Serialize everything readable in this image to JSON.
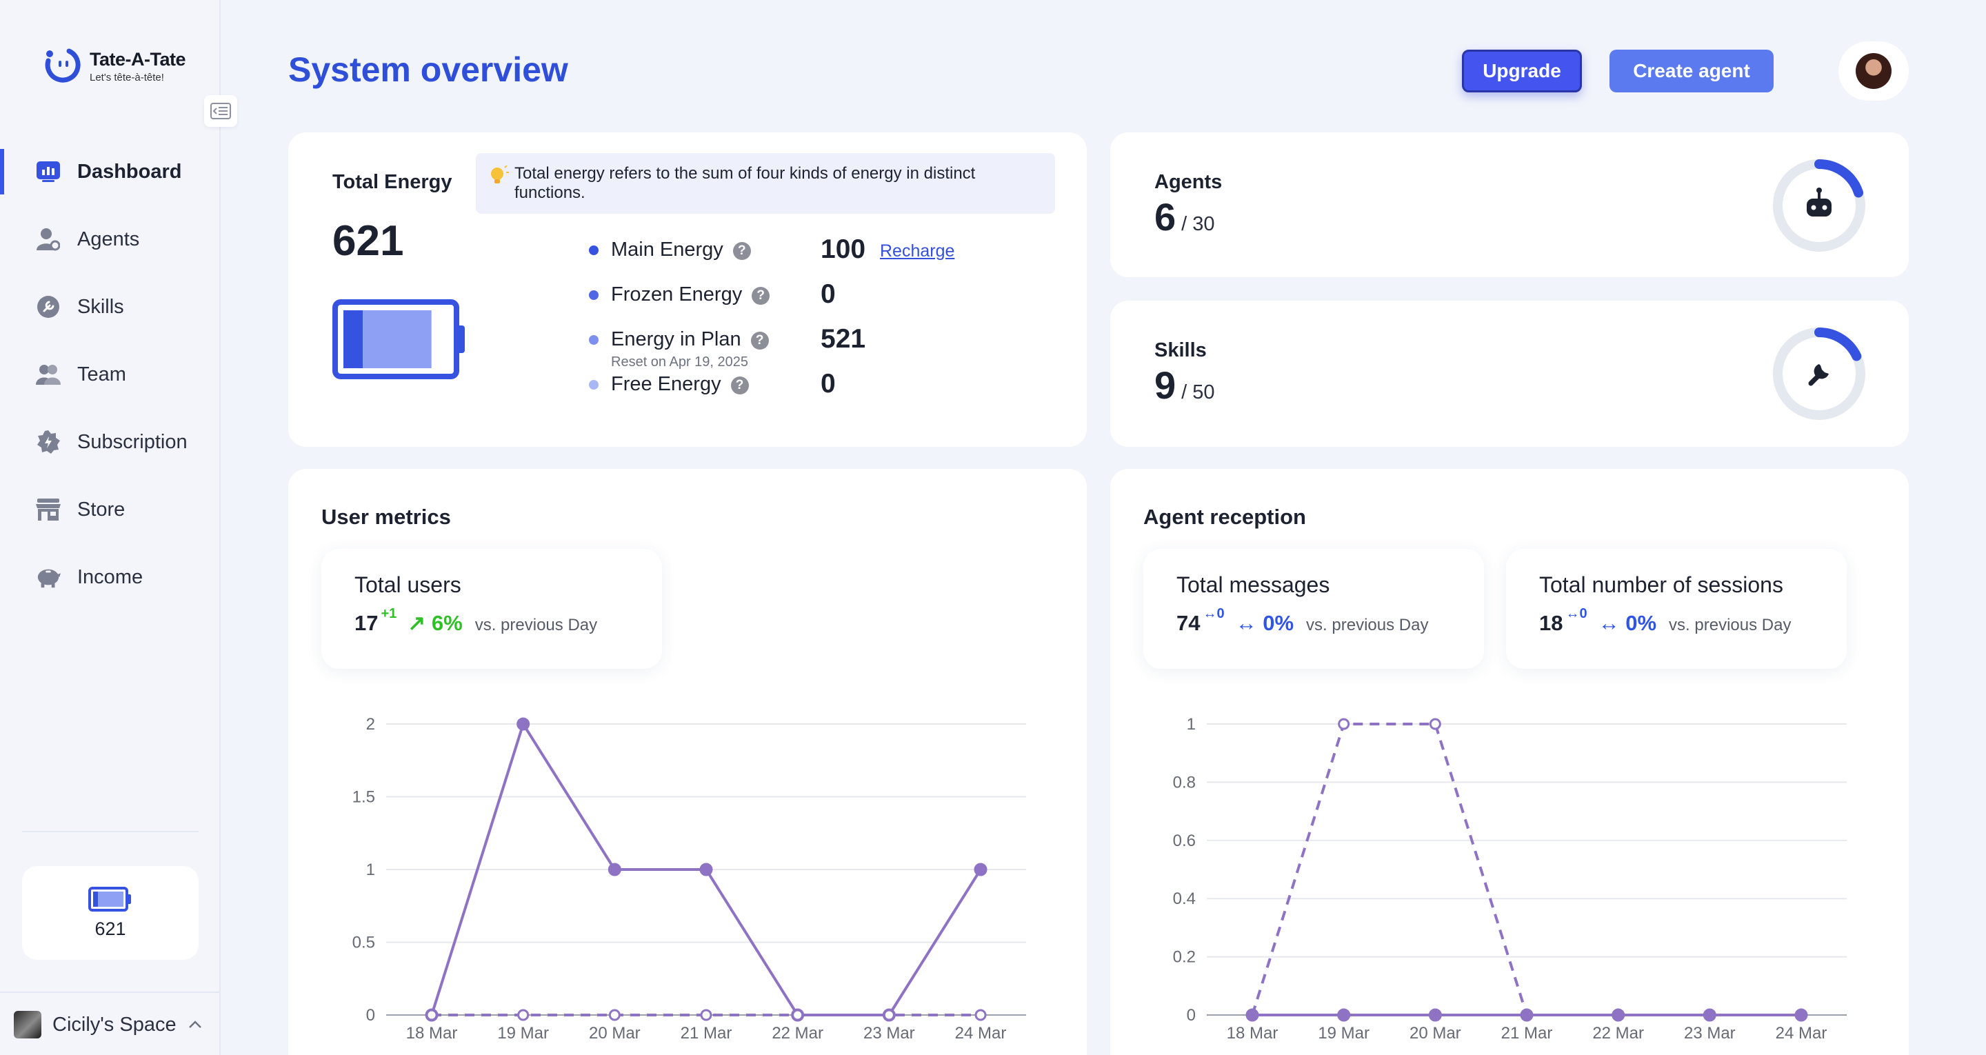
{
  "brand": {
    "name": "Tate-A-Tate",
    "tagline": "Let's tête-à-tête!"
  },
  "sidebar": {
    "items": [
      {
        "label": "Dashboard",
        "icon": "dashboard-icon",
        "active": true
      },
      {
        "label": "Agents",
        "icon": "agents-icon",
        "active": false
      },
      {
        "label": "Skills",
        "icon": "skills-icon",
        "active": false
      },
      {
        "label": "Team",
        "icon": "team-icon",
        "active": false
      },
      {
        "label": "Subscription",
        "icon": "subscription-icon",
        "active": false
      },
      {
        "label": "Store",
        "icon": "store-icon",
        "active": false
      },
      {
        "label": "Income",
        "icon": "income-icon",
        "active": false
      }
    ],
    "energy_value": "621",
    "workspace_name": "Cicily's Space"
  },
  "header": {
    "title": "System overview",
    "upgrade_label": "Upgrade",
    "create_agent_label": "Create agent"
  },
  "energy": {
    "label": "Total Energy",
    "total": "621",
    "battery_fill_fraction": 0.84,
    "tip": "Total energy refers to the sum of four kinds of energy in distinct functions.",
    "rows": [
      {
        "name": "Main Energy",
        "value": "100",
        "color": "#3552e0",
        "action": "Recharge"
      },
      {
        "name": "Frozen Energy",
        "value": "0",
        "color": "#4f67e6"
      },
      {
        "name": "Energy in Plan",
        "value": "521",
        "color": "#7d90ef",
        "note": "Reset on Apr 19, 2025"
      },
      {
        "name": "Free Energy",
        "value": "0",
        "color": "#a9b7f5"
      }
    ]
  },
  "agents": {
    "label": "Agents",
    "value": "6",
    "total": "/ 30",
    "fraction": 0.2
  },
  "skills": {
    "label": "Skills",
    "value": "9",
    "total": "/ 50",
    "fraction": 0.18
  },
  "user_metrics": {
    "title": "User metrics",
    "total_users": {
      "label": "Total users",
      "value": "17",
      "delta": "+1",
      "pct": "6%",
      "compare": "vs. previous Day"
    }
  },
  "agent_reception": {
    "title": "Agent reception",
    "total_messages": {
      "label": "Total messages",
      "value": "74",
      "delta": "0",
      "pct": "0%",
      "compare": "vs. previous Day"
    },
    "total_sessions": {
      "label": "Total number of sessions",
      "value": "18",
      "delta": "0",
      "pct": "0%",
      "compare": "vs. previous Day"
    }
  },
  "chart_data": [
    {
      "type": "line",
      "categories": [
        "18 Mar",
        "19 Mar",
        "20 Mar",
        "21 Mar",
        "22 Mar",
        "23 Mar",
        "24 Mar"
      ],
      "ylim": [
        0,
        2
      ],
      "yticks": [
        "0",
        "0.5",
        "1",
        "1.5",
        "2"
      ],
      "grid": true,
      "series": [
        {
          "values": [
            0,
            2,
            1,
            1,
            0,
            0,
            1
          ],
          "style": "solid",
          "color": "#8e72c4"
        },
        {
          "values": [
            0,
            0,
            0,
            0,
            0,
            0,
            0
          ],
          "style": "dashed",
          "color": "#8e72c4"
        }
      ]
    },
    {
      "type": "line",
      "categories": [
        "18 Mar",
        "19 Mar",
        "20 Mar",
        "21 Mar",
        "22 Mar",
        "23 Mar",
        "24 Mar"
      ],
      "ylim": [
        0,
        1
      ],
      "yticks": [
        "0",
        "0.2",
        "0.4",
        "0.6",
        "0.8",
        "1"
      ],
      "grid": true,
      "series": [
        {
          "values": [
            0,
            1,
            1,
            0,
            0,
            0,
            0
          ],
          "style": "dashed",
          "color": "#8e72c4"
        },
        {
          "values": [
            0,
            0,
            0,
            0,
            0,
            0,
            0
          ],
          "style": "solid",
          "color": "#8e72c4"
        }
      ]
    }
  ]
}
